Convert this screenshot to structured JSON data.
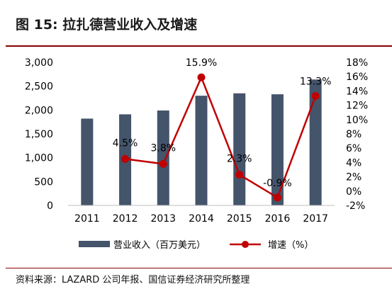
{
  "header": {
    "title": "图 15:  拉扎德营业收入及增速"
  },
  "source": {
    "text": "资料来源：LAZARD 公司年报、国信证券经济研究所整理"
  },
  "colors": {
    "bar": "#44546a",
    "line": "#c00000",
    "rule": "#8b0000"
  },
  "chart_data": {
    "type": "bar",
    "categories": [
      "2011",
      "2012",
      "2013",
      "2014",
      "2015",
      "2016",
      "2017"
    ],
    "series": [
      {
        "name": "营业收入（百万美元）",
        "type": "bar",
        "axis": "left",
        "values": [
          1820,
          1910,
          1990,
          2300,
          2350,
          2330,
          2640
        ]
      },
      {
        "name": "增速（%）",
        "type": "line",
        "axis": "right",
        "values": [
          null,
          4.5,
          3.8,
          15.9,
          2.3,
          -0.9,
          13.3
        ],
        "labels": [
          "",
          "4.5%",
          "3.8%",
          "15.9%",
          "2.3%",
          "-0.9%",
          "13.3%"
        ]
      }
    ],
    "ylim_left": [
      0,
      3000
    ],
    "yticks_left": [
      "0",
      "500",
      "1,000",
      "1,500",
      "2,000",
      "2,500",
      "3,000"
    ],
    "ylim_right": [
      -2,
      18
    ],
    "yticks_right": [
      "-2%",
      "0%",
      "2%",
      "4%",
      "6%",
      "8%",
      "10%",
      "12%",
      "14%",
      "16%",
      "18%"
    ],
    "grid": false,
    "legend_position": "bottom"
  }
}
